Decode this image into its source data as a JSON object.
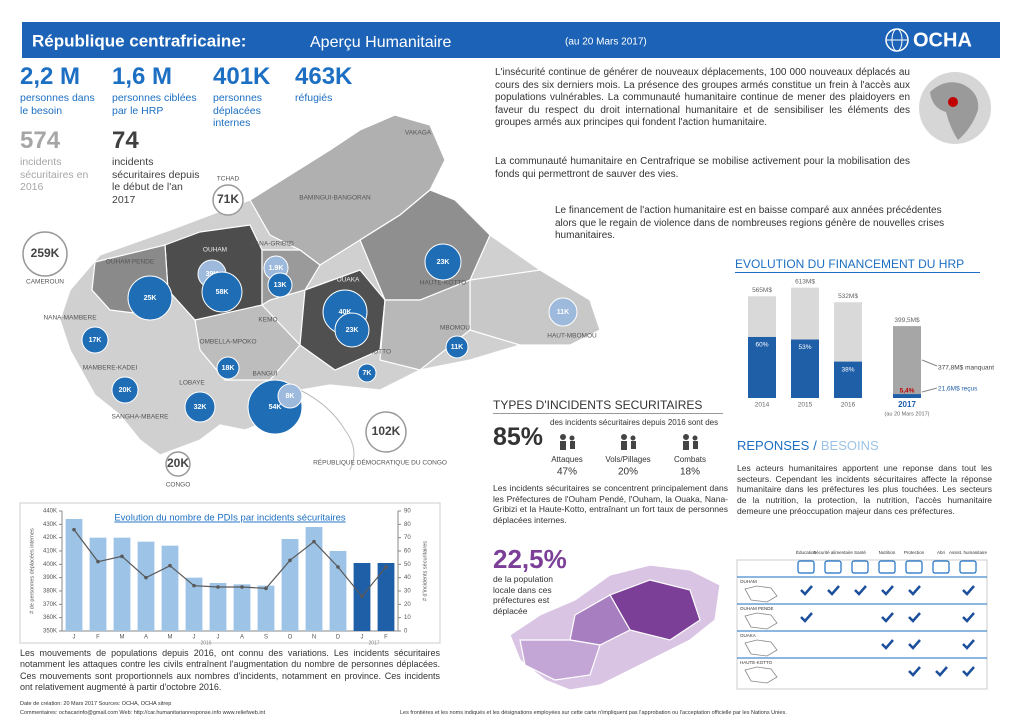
{
  "header": {
    "title": "République centrafricaine:",
    "subtitle": "Aperçu Humanitaire",
    "date": "(au 20 Mars 2017)",
    "logo": "OCHA"
  },
  "key_figures": [
    {
      "value": "2,2 M",
      "label": "personnes dans le besoin"
    },
    {
      "value": "1,6 M",
      "label": "personnes ciblées par le HRP"
    },
    {
      "value": "401K",
      "label": "personnes déplacées internes"
    },
    {
      "value": "463K",
      "label": "réfugiés"
    },
    {
      "value": "574",
      "label": "incidents sécuritaires en 2016"
    },
    {
      "value": "74",
      "label": "incidents sécuritaires depuis le début de l'an 2017"
    }
  ],
  "intro": [
    "L'insécurité continue de générer de nouveaux déplacements, 100 000 nouveaux déplacés au cours des six derniers mois. La présence des groupes armés constitue un frein à l'accès aux populations vulnérables. La communauté humanitaire continue de mener des plaidoyers en faveur du respect du droit international humanitaire et de sensibiliser les éléments des groupes armés aux principes qui fondent l'action humanitaire.",
    "La communauté humanitaire en Centrafrique se mobilise activement pour la mobilisation des fonds qui permettront de sauver des vies."
  ],
  "funding_text": "Le financement de l'action humanitaire est en baisse comparé aux années précédentes alors que le regain de violence dans de nombreuses regions génère de nouvelles crises humanitaires.",
  "map": {
    "regions": [
      "VAKAGA",
      "BAMINGUI-BANGORAN",
      "OUHAM",
      "OUHAM PENDE",
      "NANA-GRIBIZI",
      "OUAKA",
      "HAUTE-KOTTO",
      "NANA-MAMBERE",
      "KEMO",
      "OMBELLA-MPOKO",
      "MBOMOU",
      "HAUT-MBOMOU",
      "BASSE-KOTTO",
      "MAMBERE-KADEI",
      "LOBAYE",
      "SANGHA-MBAERE",
      "BANGUI"
    ],
    "idp": [
      "25K",
      "39K",
      "58K",
      "1.9K",
      "13K",
      "40K",
      "23K",
      "23K",
      "11K",
      "11K",
      "17K",
      "20K",
      "18K",
      "32K",
      "54K",
      "8K",
      "7K"
    ],
    "refugees": [
      {
        "value": "259K",
        "country": "CAMEROUN"
      },
      {
        "value": "71K",
        "country": "TCHAD"
      },
      {
        "value": "102K",
        "country": "RÉPUBLIQUE DÉMOCRATIQUE DU CONGO"
      },
      {
        "value": "20K",
        "country": "CONGO"
      }
    ]
  },
  "funding_chart": {
    "type": "bar",
    "title": "EVOLUTION DU FINANCEMENT DU HRP",
    "categories": [
      "2014",
      "2015",
      "2016",
      "2017"
    ],
    "required": [
      565,
      613,
      532,
      399.5
    ],
    "required_labels": [
      "565M$",
      "613M$",
      "532M$",
      "399,5M$"
    ],
    "funded_pct": [
      60,
      53,
      38,
      5.4
    ],
    "funded_pct_labels": [
      "60%",
      "53%",
      "38%",
      "5,4%"
    ],
    "colors": {
      "required": "#d9d9d9",
      "required_current": "#a6a6a6",
      "funded": "#1f5fa8"
    },
    "note": "(au 20 Mars 2017)",
    "missing": "377,8M$ manquant",
    "received": "21,6M$ reçus"
  },
  "incidents": {
    "title": "TYPES D'INCIDENTS SECURITAIRES",
    "share": "85%",
    "share_text": "des incidents sécuritaires depuis 2016 sont des",
    "types": [
      {
        "name": "Attaques",
        "value": "47%"
      },
      {
        "name": "Vols/Pillages",
        "value": "20%"
      },
      {
        "name": "Combats",
        "value": "18%"
      }
    ],
    "text": "Les incidents sécuritaires se concentrent principalement dans les Préfectures de l'Ouham Pendé, l'Ouham, la Ouaka, Nana-Gribizi et la Haute-Kotto, entraînant un fort taux de personnes déplacées internes."
  },
  "idp_chart": {
    "type": "bar_line",
    "title": "Evolution du nombre de PDIs par incidents sécuritaires",
    "categories": [
      "J",
      "F",
      "M",
      "A",
      "M",
      "J",
      "J",
      "A",
      "S",
      "O",
      "N",
      "D",
      "J",
      "F"
    ],
    "years": [
      "2016",
      "2017"
    ],
    "idp": [
      434000,
      420000,
      420000,
      417000,
      414000,
      390000,
      386000,
      385000,
      384000,
      419000,
      428000,
      410000,
      401000,
      401000
    ],
    "incidents": [
      76,
      52,
      56,
      40,
      49,
      34,
      33,
      33,
      32,
      53,
      67,
      48,
      26,
      48
    ],
    "bar_colors": [
      "#9dc3e6",
      "#9dc3e6",
      "#9dc3e6",
      "#9dc3e6",
      "#9dc3e6",
      "#9dc3e6",
      "#9dc3e6",
      "#9dc3e6",
      "#9dc3e6",
      "#9dc3e6",
      "#9dc3e6",
      "#9dc3e6",
      "#1f5fa8",
      "#1f5fa8"
    ],
    "line_color": "#595959",
    "y_label": "# de personnes déplacées internes",
    "y2_label": "# d'incidents sécuritaires",
    "ylim": [
      350000,
      440000
    ],
    "yticks": [
      {
        "value": 350000,
        "label": "350K"
      },
      {
        "value": 360000,
        "label": "360K"
      },
      {
        "value": 370000,
        "label": "370K"
      },
      {
        "value": 380000,
        "label": "380K"
      },
      {
        "value": 390000,
        "label": "390K"
      },
      {
        "value": 400000,
        "label": "400K"
      },
      {
        "value": 410000,
        "label": "410K"
      },
      {
        "value": 420000,
        "label": "420K"
      },
      {
        "value": 430000,
        "label": "430K"
      },
      {
        "value": 440000,
        "label": "440K"
      }
    ],
    "y2lim": [
      0,
      90
    ],
    "y2ticks": [
      0,
      10,
      20,
      30,
      40,
      50,
      60,
      70,
      80,
      90
    ]
  },
  "idp_text": "Les mouvements de populations depuis 2016, ont connu des variations. Les incidents sécuritaires notamment les attaques contre les civils entraînent l'augmentation du nombre de personnes déplacées. Ces mouvements sont proportionnels aux nombres d'incidents, notamment en province. Ces incidents ont relativement augmenté à partir d'octobre 2016.",
  "displaced_share": {
    "value": "22,5%",
    "text": "de la population locale dans ces préfectures est déplacée"
  },
  "responses": {
    "title": "REPONSES",
    "separator": "/",
    "title2": "BESOINS",
    "text": "Les acteurs humanitaires apportent une reponse dans tout les secteurs. Cependant les incidents sécuritaires affecte la réponse humanitaire dans les préfectures les plus touchées. Les secteurs de la nutrition, la protection, la nutrition, l'accès humanitaire demeure une préoccupation majeur dans ces préfectures.",
    "columns": [
      "Éducation",
      "Sécurité alimentaire",
      "Santé",
      "Nutrition",
      "Protection",
      "Abri",
      "Assist. humanitaire"
    ],
    "rows": [
      {
        "name": "OUHAM",
        "cells": [
          true,
          true,
          true,
          true,
          true,
          false,
          true
        ]
      },
      {
        "name": "OUHAM PENDE",
        "cells": [
          true,
          false,
          false,
          true,
          true,
          false,
          true
        ]
      },
      {
        "name": "OUAKA",
        "cells": [
          false,
          false,
          false,
          true,
          true,
          false,
          true
        ]
      },
      {
        "name": "HAUTE-KOTTO",
        "cells": [
          false,
          false,
          false,
          false,
          true,
          true,
          true
        ]
      }
    ]
  },
  "footer": {
    "line1": "Date de création: 20 Mars 2017   Sources: OCHA, OCHA sitrep",
    "line2": "Commentaires: ochacarinfo@gmail.com   Web: http://car.humanitarianresponse.info  www.reliefweb.int",
    "disclaimer": "Les frontières et les noms indiqués et les désignations employées sur cette carte n'impliquent pas l'approbation ou l'acceptation officielle par les Nations Unies."
  }
}
